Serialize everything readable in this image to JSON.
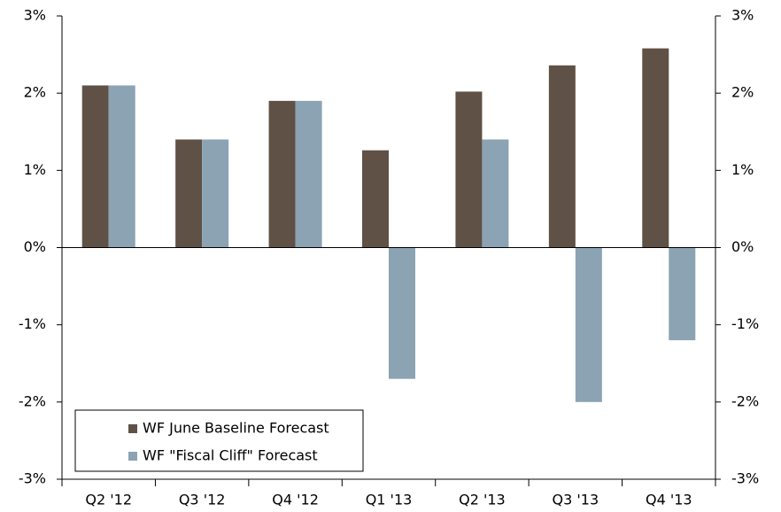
{
  "chart_data": {
    "type": "bar",
    "categories": [
      "Q2 '12",
      "Q3 '12",
      "Q4 '12",
      "Q1 '13",
      "Q2 '13",
      "Q3 '13",
      "Q4 '13"
    ],
    "series": [
      {
        "name": "WF June Baseline Forecast",
        "color": "#5f5146",
        "values": [
          2.1,
          1.4,
          1.9,
          1.26,
          2.02,
          2.36,
          2.58
        ]
      },
      {
        "name": "WF \"Fiscal Cliff\" Forecast",
        "color": "#8ba3b3",
        "values": [
          2.1,
          1.4,
          1.9,
          -1.7,
          1.4,
          -2.0,
          -1.2
        ]
      }
    ],
    "ylim": [
      -3,
      3
    ],
    "yticks": [
      {
        "value": -3,
        "label": "-3%"
      },
      {
        "value": -2,
        "label": "-2%"
      },
      {
        "value": -1,
        "label": "-1%"
      },
      {
        "value": 0,
        "label": "0%"
      },
      {
        "value": 1,
        "label": "1%"
      },
      {
        "value": 2,
        "label": "2%"
      },
      {
        "value": 3,
        "label": "3%"
      }
    ],
    "y2lim": [
      -3,
      3
    ],
    "y2ticks": [
      {
        "value": -3,
        "label": "-3%"
      },
      {
        "value": -2,
        "label": "-2%"
      },
      {
        "value": -1,
        "label": "-1%"
      },
      {
        "value": 0,
        "label": "0%"
      },
      {
        "value": 1,
        "label": "1%"
      },
      {
        "value": 2,
        "label": "2%"
      },
      {
        "value": 3,
        "label": "3%"
      }
    ],
    "legend": "lower left"
  }
}
